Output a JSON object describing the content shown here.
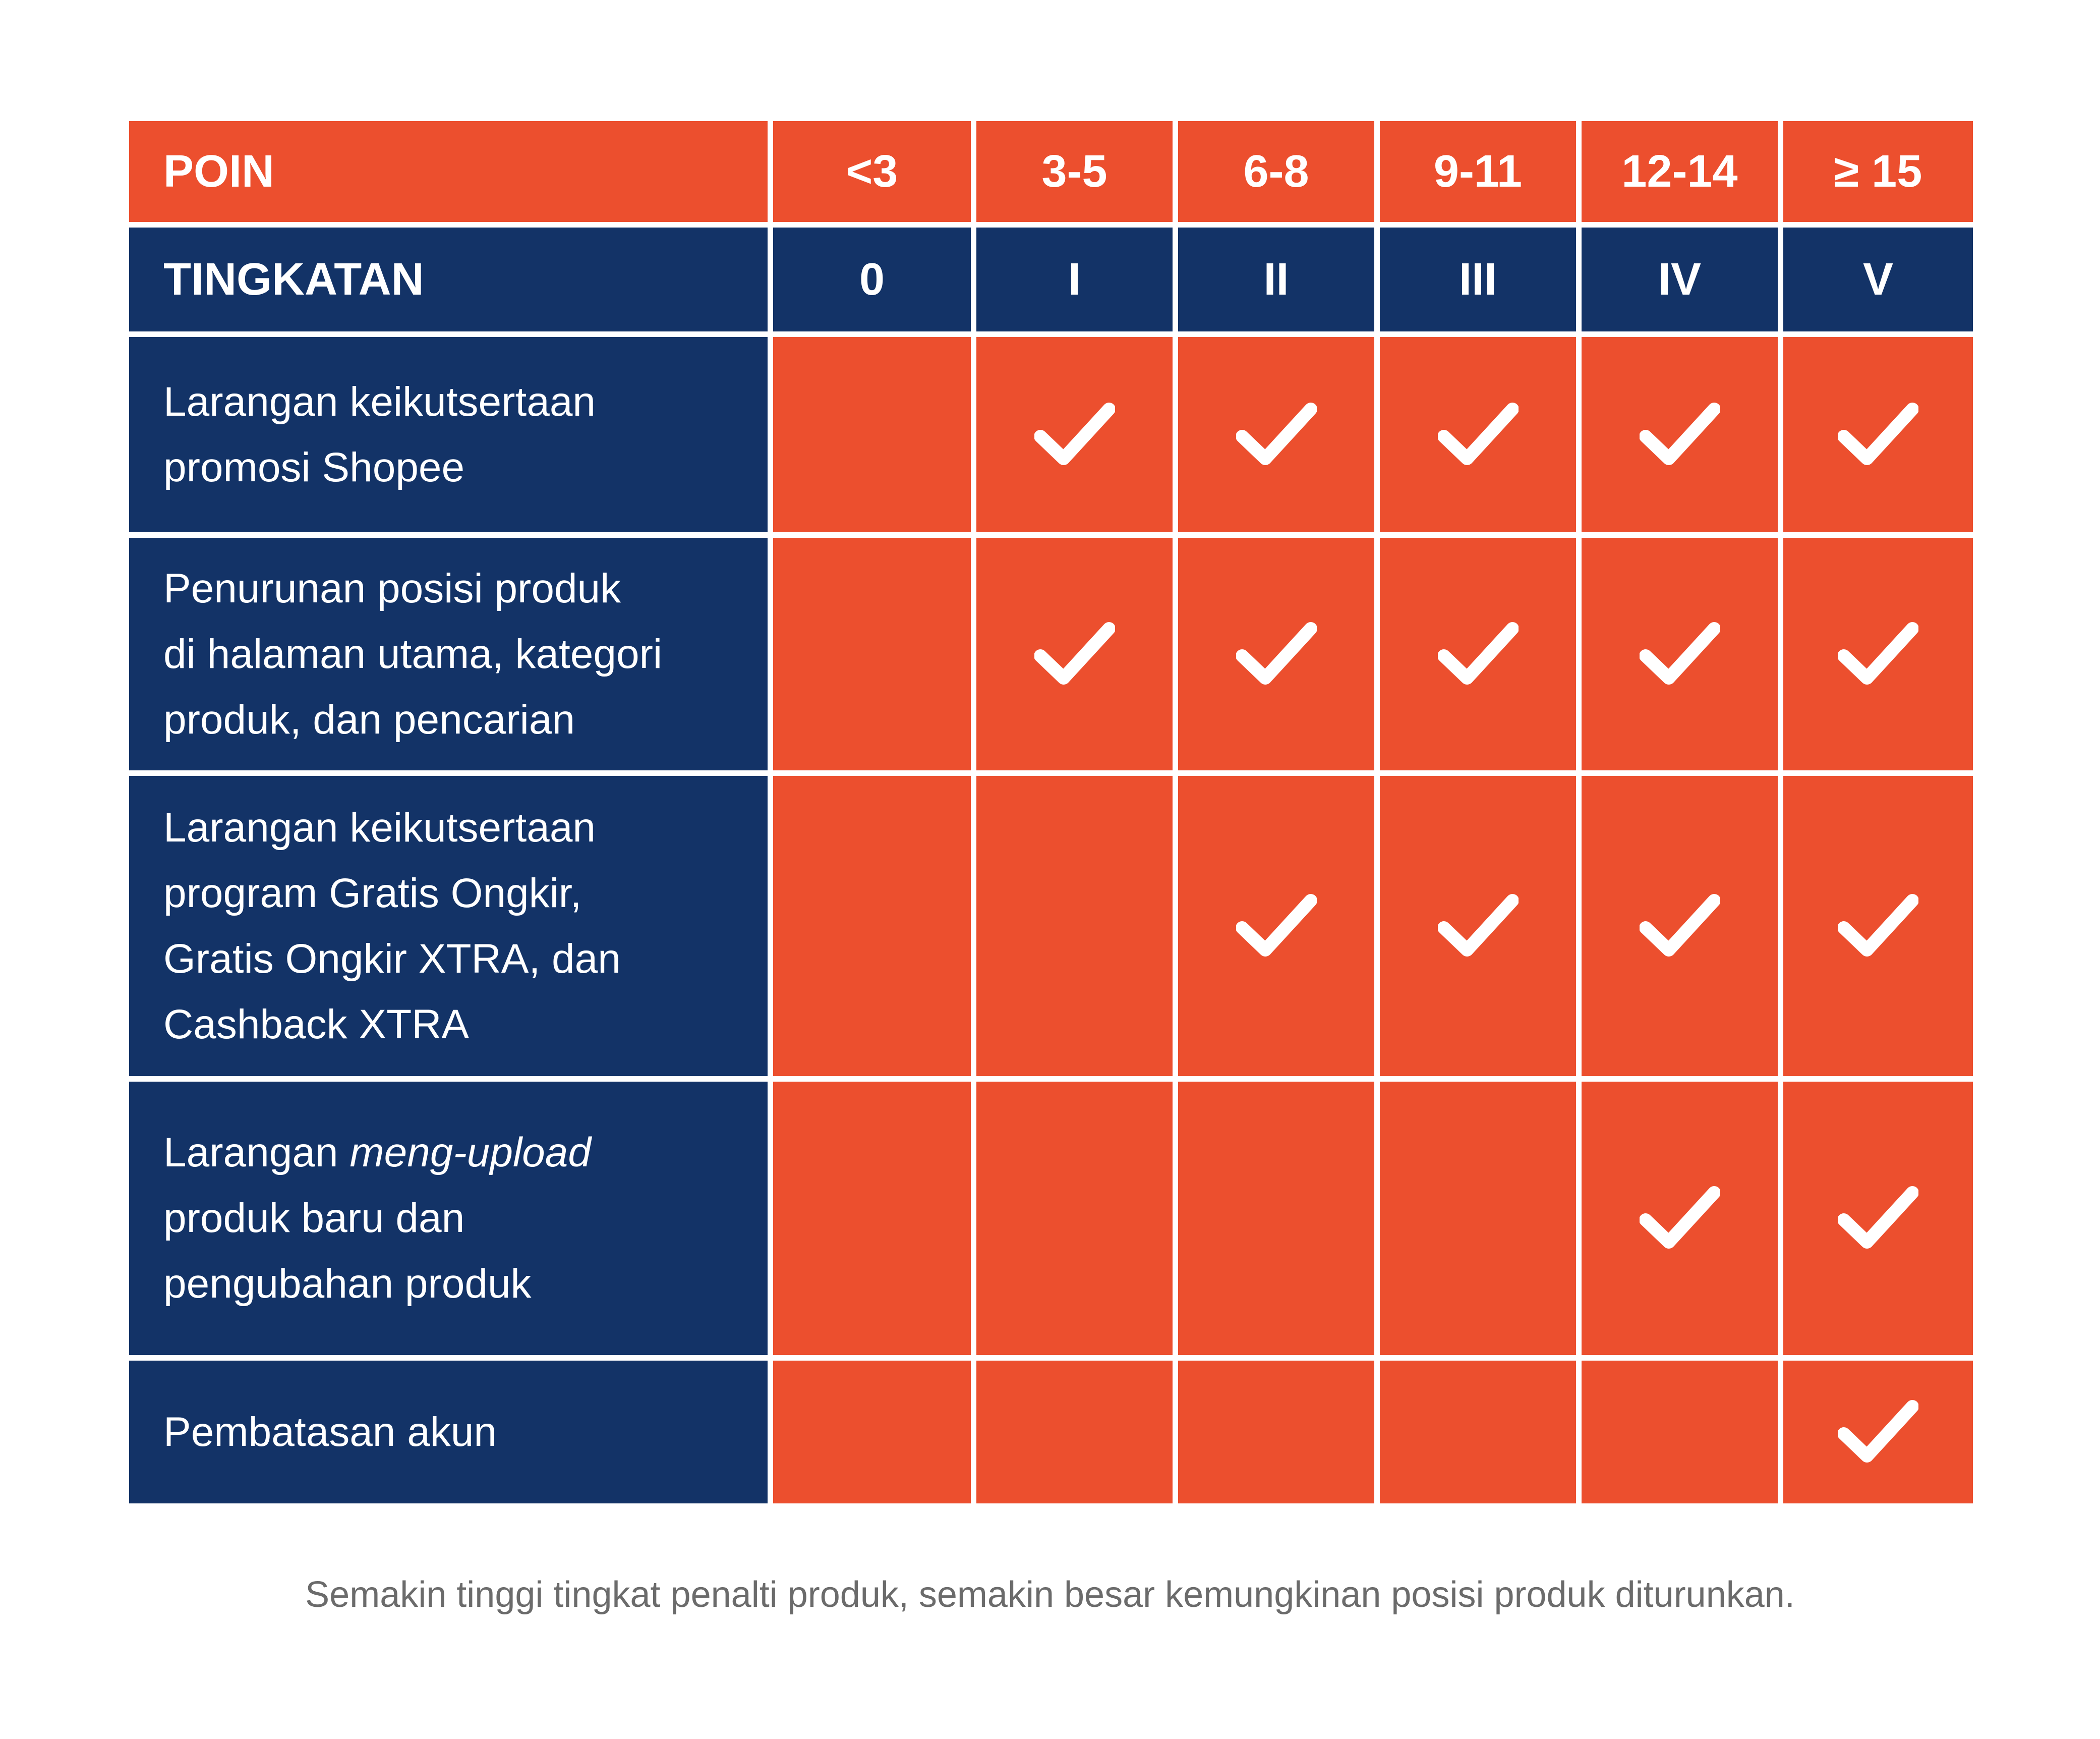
{
  "colors": {
    "orange": "#EC4F2E",
    "navy": "#133367",
    "check": "#FFFFFF"
  },
  "header": {
    "poin_label": "POIN",
    "poin_values": [
      "<3",
      "3-5",
      "6-8",
      "9-11",
      "12-14",
      "≥ 15"
    ],
    "level_label": "TINGKATAN",
    "levels": [
      "0",
      "I",
      "II",
      "III",
      "IV",
      "V"
    ]
  },
  "rows": [
    {
      "label": "Larangan keikutsertaan\npromosi Shopee",
      "checks": [
        false,
        true,
        true,
        true,
        true,
        true
      ]
    },
    {
      "label": "Penurunan posisi produk\ndi halaman utama, kategori\nproduk, dan pencarian",
      "checks": [
        false,
        true,
        true,
        true,
        true,
        true
      ]
    },
    {
      "label": "Larangan keikutsertaan\nprogram Gratis Ongkir,\nGratis Ongkir XTRA, dan\nCashback XTRA",
      "checks": [
        false,
        false,
        true,
        true,
        true,
        true
      ]
    },
    {
      "label_pre": "Larangan ",
      "label_italic": "meng-upload",
      "label_post": "\nproduk baru dan\npengubahan produk",
      "checks": [
        false,
        false,
        false,
        false,
        true,
        true
      ]
    },
    {
      "label": "Pembatasan akun",
      "checks": [
        false,
        false,
        false,
        false,
        false,
        true
      ]
    }
  ],
  "check_icon": "checkmark-icon",
  "caption": "Semakin tinggi tingkat penalti produk, semakin besar kemungkinan posisi produk diturunkan."
}
